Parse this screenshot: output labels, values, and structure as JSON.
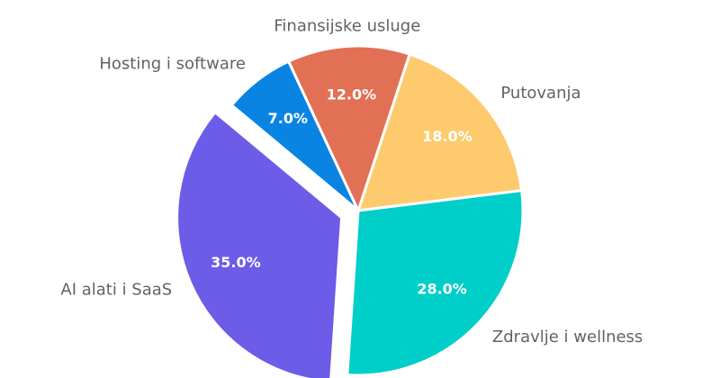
{
  "chart_data": {
    "type": "pie",
    "categories": [
      "Putovanja",
      "Zdravlje i wellness",
      "AI alati i SaaS",
      "Hosting i software",
      "Finansijske usluge"
    ],
    "values": [
      18,
      28,
      35,
      7,
      12
    ],
    "value_labels": [
      "18.0%",
      "28.0%",
      "35.0%",
      "7.0%",
      "12.0%"
    ],
    "colors": [
      "#fdcb6e",
      "#00cec9",
      "#6c5ce7",
      "#0984e3",
      "#e17055"
    ],
    "explode": [
      false,
      false,
      true,
      false,
      false
    ]
  }
}
